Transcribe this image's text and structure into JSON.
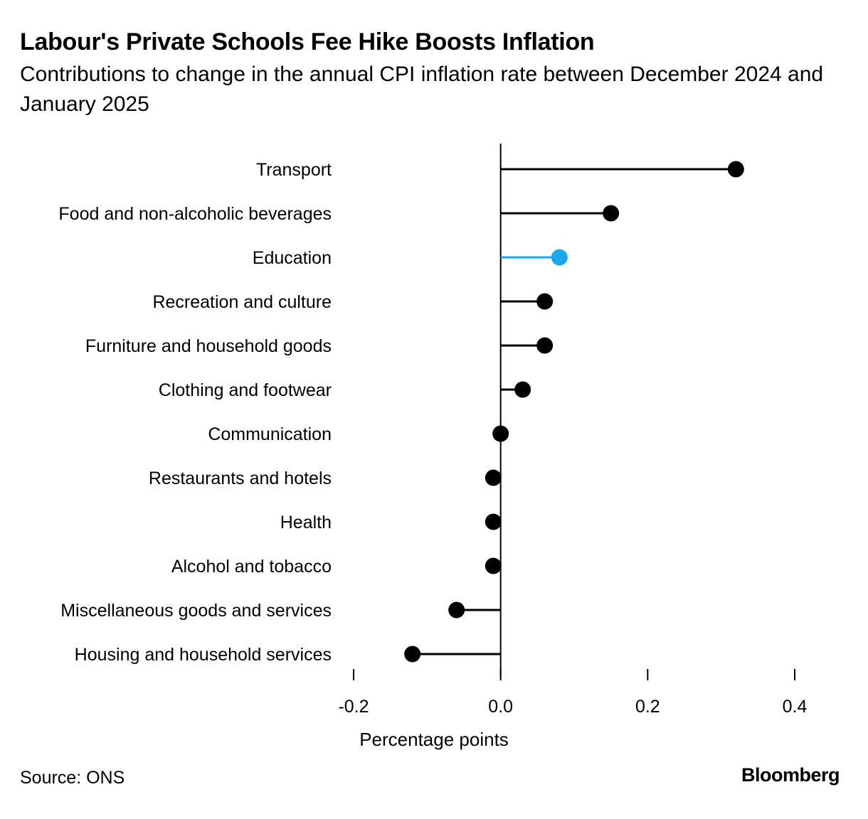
{
  "header": {
    "title": "Labour's Private Schools Fee Hike Boosts Inflation",
    "subtitle": "Contributions to change in the annual CPI inflation rate between December 2024 and January 2025"
  },
  "footer": {
    "source": "Source: ONS",
    "brand": "Bloomberg"
  },
  "colors": {
    "default": "#000000",
    "highlight": "#1aa8ec"
  },
  "chart_data": {
    "type": "lollipop",
    "title": "Labour's Private Schools Fee Hike Boosts Inflation",
    "subtitle": "Contributions to change in the annual CPI inflation rate between December 2024 and January 2025",
    "xlabel": "Percentage points",
    "ylabel": "",
    "xlim": [
      -0.2,
      0.4
    ],
    "xticks": [
      -0.2,
      0.0,
      0.2,
      0.4
    ],
    "xtick_labels": [
      "-0.2",
      "0.0",
      "0.2",
      "0.4"
    ],
    "grid": false,
    "highlight": "Education",
    "categories": [
      "Transport",
      "Food and non-alcoholic beverages",
      "Education",
      "Recreation and culture",
      "Furniture and household goods",
      "Clothing and footwear",
      "Communication",
      "Restaurants and hotels",
      "Health",
      "Alcohol and tobacco",
      "Miscellaneous goods and services",
      "Housing and household services"
    ],
    "values": [
      0.32,
      0.15,
      0.08,
      0.06,
      0.06,
      0.03,
      0.0,
      -0.01,
      -0.01,
      -0.01,
      -0.06,
      -0.12
    ]
  }
}
